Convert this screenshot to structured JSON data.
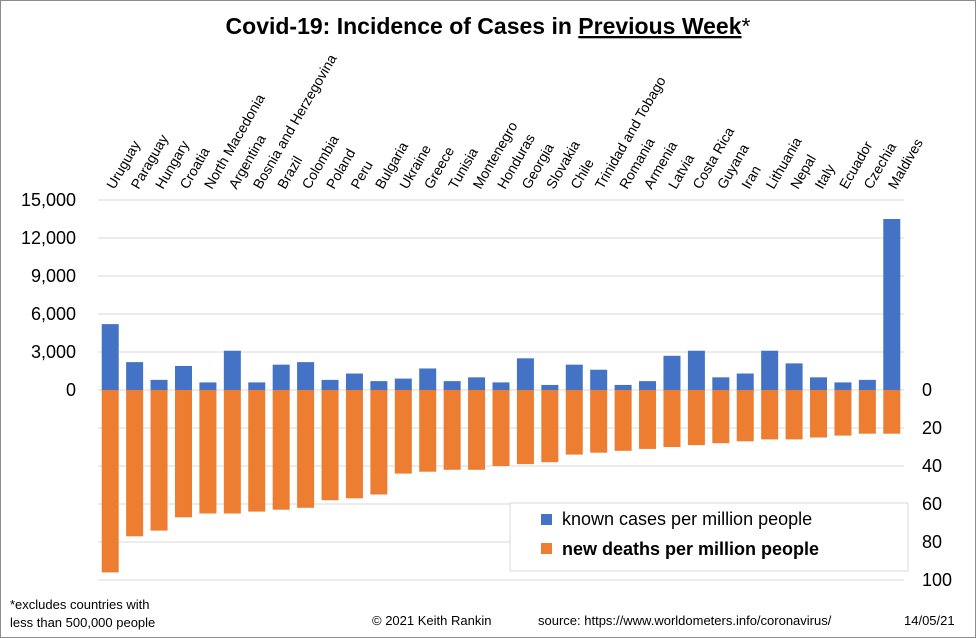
{
  "chart_data": {
    "type": "bar",
    "title": "Covid-19: Incidence of Cases in Previous Week*",
    "title_parts": {
      "lead": "Covid-19: Incidence of Cases in ",
      "emphasis": "Previous Week",
      "tail": "*"
    },
    "categories": [
      "Uruguay",
      "Paraguay",
      "Hungary",
      "Croatia",
      "North Macedonia",
      "Argentina",
      "Bosnia and Herzegovina",
      "Brazil",
      "Colombia",
      "Poland",
      "Peru",
      "Bulgaria",
      "Ukraine",
      "Greece",
      "Tunisia",
      "Montenegro",
      "Honduras",
      "Georgia",
      "Slovakia",
      "Chile",
      "Trinidad and Tobago",
      "Romania",
      "Armenia",
      "Latvia",
      "Costa Rica",
      "Guyana",
      "Iran",
      "Lithuania",
      "Nepal",
      "Italy",
      "Ecuador",
      "Czechia",
      "Maldives"
    ],
    "series": [
      {
        "name": "known cases per million people",
        "axis": "left",
        "color": "#4472c4",
        "values": [
          5200,
          2200,
          800,
          1900,
          600,
          3100,
          600,
          2000,
          2200,
          800,
          1300,
          700,
          900,
          1700,
          700,
          1000,
          600,
          2500,
          400,
          2000,
          1600,
          400,
          700,
          2700,
          3100,
          1000,
          1300,
          3100,
          2100,
          1000,
          600,
          800,
          13500
        ]
      },
      {
        "name": "new deaths per million people",
        "axis": "right",
        "color": "#ed7d31",
        "values": [
          96,
          77,
          74,
          67,
          65,
          65,
          64,
          63,
          62,
          58,
          57,
          55,
          44,
          43,
          42,
          42,
          40,
          39,
          38,
          34,
          33,
          32,
          31,
          30,
          29,
          28,
          27,
          26,
          26,
          25,
          24,
          23,
          23
        ]
      }
    ],
    "y_left": {
      "min": -15000,
      "max": 15000,
      "ticks": [
        0,
        3000,
        6000,
        9000,
        12000,
        15000
      ],
      "tick_labels": [
        "0",
        "3,000",
        "6,000",
        "9,000",
        "12,000",
        "15,000"
      ]
    },
    "y_right": {
      "min": 0,
      "max": 100,
      "inverted": true,
      "ticks": [
        0,
        20,
        40,
        60,
        80,
        100
      ],
      "tick_labels": [
        "0",
        "20",
        "40",
        "60",
        "80",
        "100"
      ]
    },
    "grid": true,
    "legend_position": "bottom-right"
  },
  "footnotes": {
    "note_line1": "*excludes  countries with",
    "note_line2": "less than 500,000 people",
    "copyright": "© 2021  Keith Rankin",
    "source": "source:  https://www.worldometers.info/coronavirus/",
    "date": "14/05/21"
  }
}
